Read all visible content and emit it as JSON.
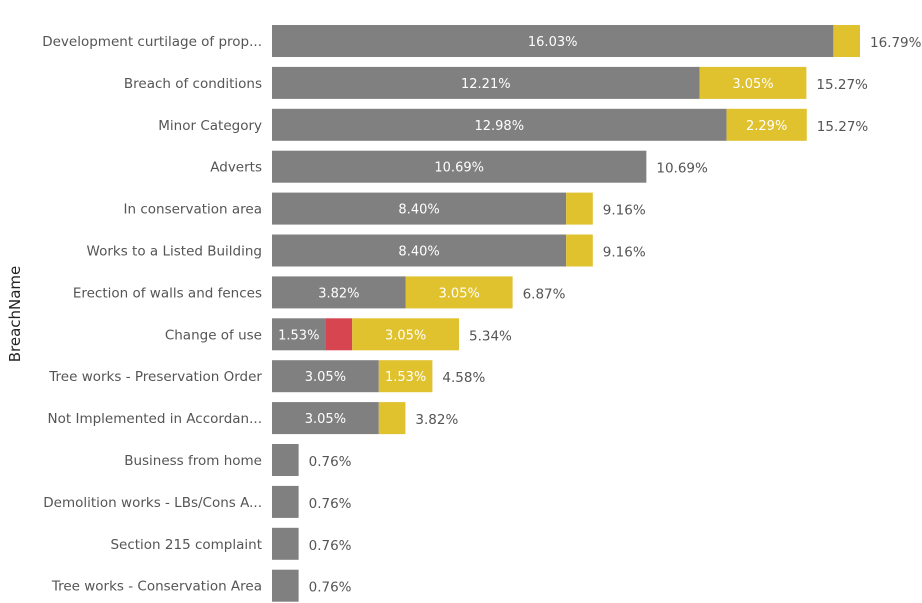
{
  "chart_data": {
    "type": "bar",
    "orientation": "horizontal",
    "stacked": true,
    "ylabel": "BreachName",
    "categories": [
      "Development curtilage of prop...",
      "Breach of conditions",
      "Minor Category",
      "Adverts",
      "In conservation area",
      "Works to a Listed Building",
      "Erection of walls and fences",
      "Change of use",
      "Tree works - Preservation Order",
      "Not Implemented in Accordan...",
      "Business from home",
      "Demolition works - LBs/Cons A...",
      "Section 215 complaint",
      "Tree works - Conservation Area"
    ],
    "series": [
      {
        "color": "#808080",
        "values": [
          16.03,
          12.21,
          12.98,
          10.69,
          8.4,
          8.4,
          3.82,
          1.53,
          3.05,
          3.05,
          0.76,
          0.76,
          0.76,
          0.76
        ],
        "labels": [
          "16.03%",
          "12.21%",
          "12.98%",
          "10.69%",
          "8.40%",
          "8.40%",
          "3.82%",
          "1.53%",
          "3.05%",
          "3.05%",
          "",
          "",
          "",
          ""
        ]
      },
      {
        "color": "#D64550",
        "values": [
          0,
          0,
          0,
          0,
          0,
          0,
          0,
          0.76,
          0,
          0,
          0,
          0,
          0,
          0
        ],
        "labels": [
          "",
          "",
          "",
          "",
          "",
          "",
          "",
          "",
          "",
          "",
          "",
          "",
          "",
          ""
        ]
      },
      {
        "color": "#E0C12E",
        "values": [
          0.76,
          3.05,
          2.29,
          0,
          0.76,
          0.76,
          3.05,
          3.05,
          1.53,
          0.76,
          0,
          0,
          0,
          0
        ],
        "labels": [
          "",
          "3.05%",
          "2.29%",
          "",
          "",
          "",
          "3.05%",
          "3.05%",
          "1.53%",
          "",
          "",
          "",
          "",
          ""
        ]
      }
    ],
    "totals": [
      "16.79%",
      "15.27%",
      "15.27%",
      "10.69%",
      "9.16%",
      "9.16%",
      "6.87%",
      "5.34%",
      "4.58%",
      "3.82%",
      "0.76%",
      "0.76%",
      "0.76%",
      "0.76%"
    ],
    "xlim": [
      0,
      16.79
    ],
    "grid": false,
    "legend": "none"
  }
}
